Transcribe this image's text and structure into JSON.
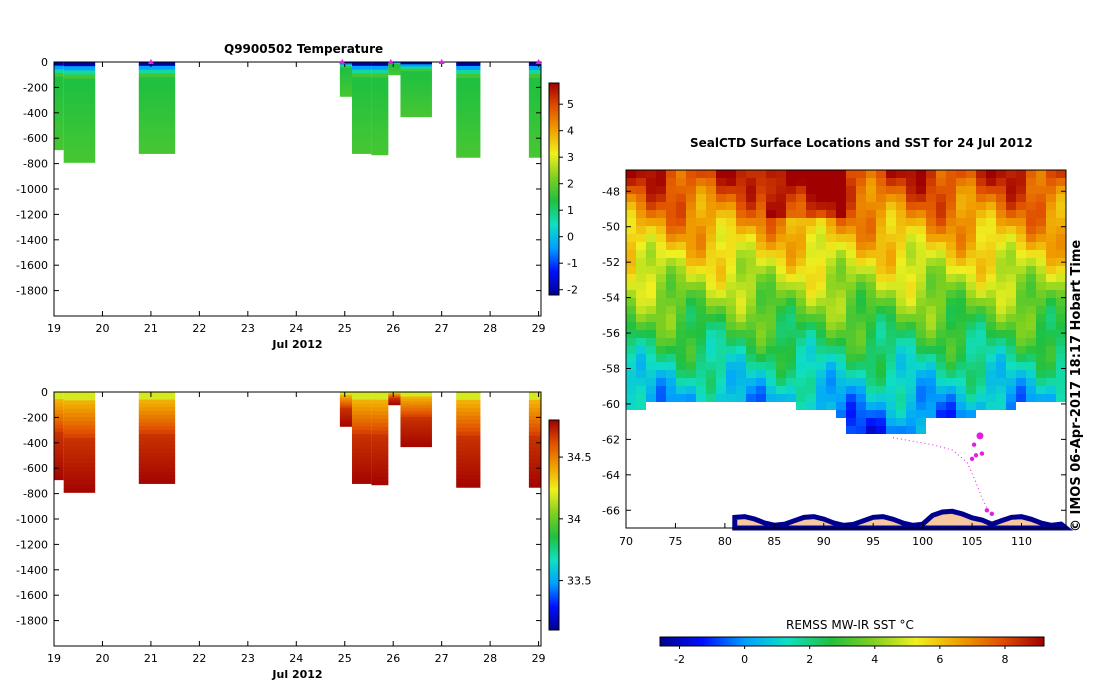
{
  "titles": {
    "profile": "Q9900502  Temperature",
    "map": "SealCTD Surface Locations and SST for 24 Jul 2012",
    "colorbar": "REMSS MW-IR SST °C",
    "credit": "© IMOS 06-Apr-2017 18:17 Hobart Time"
  },
  "colors": {
    "jet": [
      "#00008f",
      "#0010ff",
      "#00a0ff",
      "#10e0c0",
      "#20c040",
      "#80d020",
      "#f0f020",
      "#f0a000",
      "#e05000",
      "#a00000"
    ],
    "land": "#f5c8a0",
    "track": "#e020e0",
    "marker": "#e020e0"
  },
  "chart_data": [
    {
      "type": "heatmap",
      "name": "temperature-section",
      "title": "Q9900502  Temperature",
      "xlabel": "Jul 2012",
      "xlim": [
        19,
        29.05
      ],
      "xticks": [
        19,
        20,
        21,
        22,
        23,
        24,
        25,
        26,
        27,
        28,
        29
      ],
      "ylim": [
        -2000,
        0
      ],
      "yticks": [
        0,
        -200,
        -400,
        -600,
        -800,
        -1000,
        -1200,
        -1400,
        -1600,
        -1800
      ],
      "colorbar": {
        "range": [
          -2.2,
          5.8
        ],
        "ticks": [
          5,
          4,
          3,
          2,
          1,
          0,
          -1,
          -2
        ]
      },
      "profiles": [
        {
          "start": 19.0,
          "end": 19.2,
          "depth": -690
        },
        {
          "start": 19.2,
          "end": 19.85,
          "depth": -790
        },
        {
          "start": 20.75,
          "end": 21.5,
          "depth": -720
        },
        {
          "start": 24.9,
          "end": 25.15,
          "depth": -270
        },
        {
          "start": 25.15,
          "end": 25.55,
          "depth": -720
        },
        {
          "start": 25.55,
          "end": 25.9,
          "depth": -730
        },
        {
          "start": 25.9,
          "end": 26.15,
          "depth": -100
        },
        {
          "start": 26.15,
          "end": 26.8,
          "depth": -430
        },
        {
          "start": 27.3,
          "end": 27.8,
          "depth": -750
        },
        {
          "start": 28.8,
          "end": 29.05,
          "depth": -750
        }
      ],
      "surface_markers": [
        21.0,
        24.95,
        25.95,
        27.0,
        29.0
      ],
      "grid": false
    },
    {
      "type": "heatmap",
      "name": "salinity-section",
      "title": "",
      "xlabel": "Jul 2012",
      "xlim": [
        19,
        29.05
      ],
      "xticks": [
        19,
        20,
        21,
        22,
        23,
        24,
        25,
        26,
        27,
        28,
        29
      ],
      "ylim": [
        -2000,
        0
      ],
      "yticks": [
        0,
        -200,
        -400,
        -600,
        -800,
        -1000,
        -1200,
        -1400,
        -1600,
        -1800
      ],
      "colorbar": {
        "range": [
          33.1,
          34.8
        ],
        "ticks": [
          34.5,
          34,
          33.5
        ]
      },
      "profiles": [
        {
          "start": 19.0,
          "end": 19.2,
          "depth": -690
        },
        {
          "start": 19.2,
          "end": 19.85,
          "depth": -790
        },
        {
          "start": 20.75,
          "end": 21.5,
          "depth": -720
        },
        {
          "start": 24.9,
          "end": 25.15,
          "depth": -270
        },
        {
          "start": 25.15,
          "end": 25.55,
          "depth": -720
        },
        {
          "start": 25.55,
          "end": 25.9,
          "depth": -730
        },
        {
          "start": 25.9,
          "end": 26.15,
          "depth": -100
        },
        {
          "start": 26.15,
          "end": 26.8,
          "depth": -430
        },
        {
          "start": 27.3,
          "end": 27.8,
          "depth": -750
        },
        {
          "start": 28.8,
          "end": 29.05,
          "depth": -750
        }
      ],
      "grid": false
    },
    {
      "type": "heatmap",
      "name": "sst-map",
      "title": "SealCTD Surface Locations and SST for 24 Jul 2012",
      "xlim": [
        70,
        114.5
      ],
      "ylim": [
        -67,
        -46.8
      ],
      "xticks": [
        70,
        75,
        80,
        85,
        90,
        95,
        100,
        105,
        110
      ],
      "yticks": [
        -48,
        -50,
        -52,
        -54,
        -56,
        -58,
        -60,
        -62,
        -64,
        -66
      ],
      "colorbar": {
        "label": "REMSS MW-IR SST °C",
        "range": [
          -2.6,
          9.2
        ],
        "ticks": [
          -2,
          0,
          2,
          4,
          6,
          8
        ]
      },
      "surface_locations": [
        [
          105.8,
          -61.8
        ],
        [
          105.2,
          -62.3
        ],
        [
          105.4,
          -62.9
        ],
        [
          105.0,
          -63.1
        ],
        [
          106.0,
          -62.8
        ],
        [
          106.5,
          -66.0
        ],
        [
          107.0,
          -66.2
        ]
      ],
      "grid": false
    }
  ]
}
